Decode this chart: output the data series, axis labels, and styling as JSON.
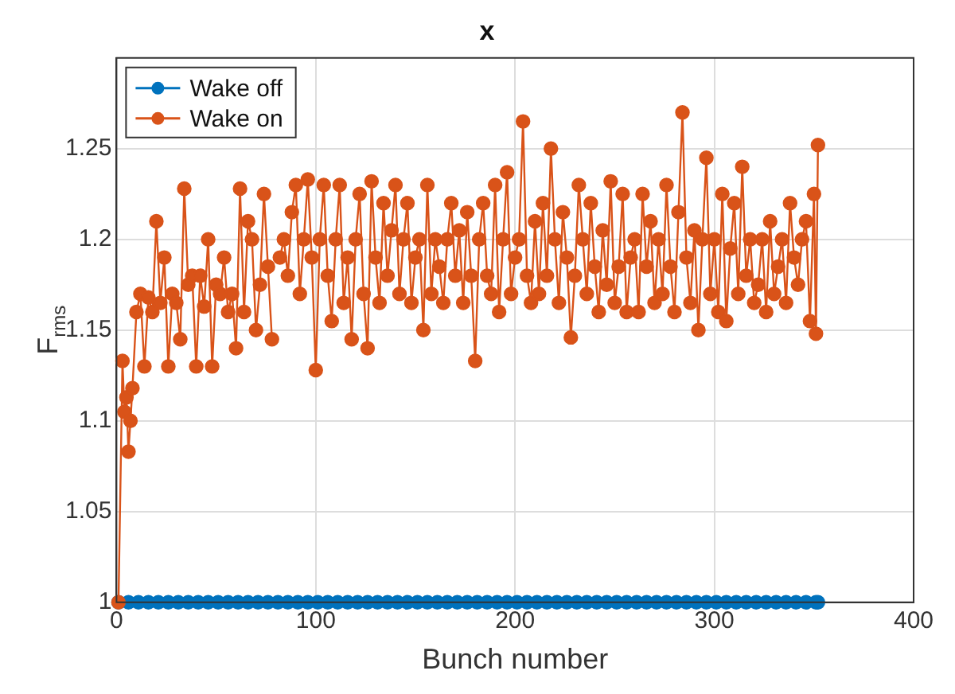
{
  "chart_data": {
    "type": "line",
    "title": "x",
    "xlabel": "Bunch number",
    "ylabel": "F$_{rms}$",
    "xlim": [
      0,
      400
    ],
    "xticks": [
      0,
      100,
      200,
      300,
      400
    ],
    "ylim": [
      1,
      1.3
    ],
    "yticks": [
      1,
      1.05,
      1.1,
      1.15,
      1.2,
      1.25
    ],
    "grid": true,
    "legend": "top left",
    "marker": "circle",
    "line_style": "solid",
    "series": [
      {
        "name": "Wake off",
        "type": "scatter",
        "color": "#0072bd",
        "x": [
          1,
          6,
          11,
          16,
          21,
          26,
          31,
          36,
          41,
          46,
          51,
          56,
          61,
          66,
          71,
          76,
          81,
          86,
          91,
          96,
          101,
          106,
          111,
          116,
          121,
          126,
          131,
          136,
          141,
          146,
          151,
          156,
          161,
          166,
          171,
          176,
          181,
          186,
          191,
          196,
          201,
          206,
          211,
          216,
          221,
          226,
          231,
          236,
          241,
          246,
          251,
          256,
          261,
          266,
          271,
          276,
          281,
          286,
          291,
          296,
          301,
          306,
          311,
          316,
          321,
          326,
          331,
          336,
          341,
          346,
          351,
          352
        ],
        "values": [
          1,
          1,
          1,
          1,
          1,
          1,
          1,
          1,
          1,
          1,
          1,
          1,
          1,
          1,
          1,
          1,
          1,
          1,
          1,
          1,
          1,
          1,
          1,
          1,
          1,
          1,
          1,
          1,
          1,
          1,
          1,
          1,
          1,
          1,
          1,
          1,
          1,
          1,
          1,
          1,
          1,
          1,
          1,
          1,
          1,
          1,
          1,
          1,
          1,
          1,
          1,
          1,
          1,
          1,
          1,
          1,
          1,
          1,
          1,
          1,
          1,
          1,
          1,
          1,
          1,
          1,
          1,
          1,
          1,
          1,
          1,
          1
        ]
      },
      {
        "name": "Wake on",
        "color": "#d95319",
        "x": [
          1,
          3,
          4,
          5,
          6,
          7,
          8,
          10,
          12,
          14,
          16,
          18,
          20,
          22,
          24,
          26,
          28,
          30,
          32,
          34,
          36,
          38,
          40,
          42,
          44,
          46,
          48,
          50,
          52,
          54,
          56,
          58,
          60,
          62,
          64,
          66,
          68,
          70,
          72,
          74,
          76,
          78,
          80,
          82,
          84,
          86,
          88,
          90,
          92,
          94,
          96,
          98,
          100,
          102,
          104,
          106,
          108,
          110,
          112,
          114,
          116,
          118,
          120,
          122,
          124,
          126,
          128,
          130,
          132,
          134,
          136,
          138,
          140,
          142,
          144,
          146,
          148,
          150,
          152,
          154,
          156,
          158,
          160,
          162,
          164,
          166,
          168,
          170,
          172,
          174,
          176,
          178,
          180,
          182,
          184,
          186,
          188,
          190,
          192,
          194,
          196,
          198,
          200,
          202,
          204,
          206,
          208,
          210,
          212,
          214,
          216,
          218,
          220,
          222,
          224,
          226,
          228,
          230,
          232,
          234,
          236,
          238,
          240,
          242,
          244,
          246,
          248,
          250,
          252,
          254,
          256,
          258,
          260,
          262,
          264,
          266,
          268,
          270,
          272,
          274,
          276,
          278,
          280,
          282,
          284,
          286,
          288,
          290,
          292,
          294,
          296,
          298,
          300,
          302,
          304,
          306,
          308,
          310,
          312,
          314,
          316,
          318,
          320,
          322,
          324,
          326,
          328,
          330,
          332,
          334,
          336,
          338,
          340,
          342,
          344,
          346,
          348,
          350,
          351,
          352
        ],
        "values": [
          1.0,
          1.133,
          1.105,
          1.113,
          1.083,
          1.1,
          1.118,
          1.16,
          1.17,
          1.13,
          1.168,
          1.16,
          1.21,
          1.165,
          1.19,
          1.13,
          1.17,
          1.165,
          1.145,
          1.228,
          1.175,
          1.18,
          1.13,
          1.18,
          1.163,
          1.2,
          1.13,
          1.175,
          1.17,
          1.19,
          1.16,
          1.17,
          1.14,
          1.228,
          1.16,
          1.21,
          1.2,
          1.15,
          1.175,
          1.225,
          1.185,
          1.145,
          null,
          1.19,
          1.2,
          1.18,
          1.215,
          1.23,
          1.17,
          1.2,
          1.233,
          1.19,
          1.128,
          1.2,
          1.23,
          1.18,
          1.155,
          1.2,
          1.23,
          1.165,
          1.19,
          1.145,
          1.2,
          1.225,
          1.17,
          1.14,
          1.232,
          1.19,
          1.165,
          1.22,
          1.18,
          1.205,
          1.23,
          1.17,
          1.2,
          1.22,
          1.165,
          1.19,
          1.2,
          1.15,
          1.23,
          1.17,
          1.2,
          1.185,
          1.165,
          1.2,
          1.22,
          1.18,
          1.205,
          1.165,
          1.215,
          1.18,
          1.133,
          1.2,
          1.22,
          1.18,
          1.17,
          1.23,
          1.16,
          1.2,
          1.237,
          1.17,
          1.19,
          1.2,
          1.265,
          1.18,
          1.165,
          1.21,
          1.17,
          1.22,
          1.18,
          1.25,
          1.2,
          1.165,
          1.215,
          1.19,
          1.146,
          1.18,
          1.23,
          1.2,
          1.17,
          1.22,
          1.185,
          1.16,
          1.205,
          1.175,
          1.232,
          1.165,
          1.185,
          1.225,
          1.16,
          1.19,
          1.2,
          1.16,
          1.225,
          1.185,
          1.21,
          1.165,
          1.2,
          1.17,
          1.23,
          1.185,
          1.16,
          1.215,
          1.27,
          1.19,
          1.165,
          1.205,
          1.15,
          1.2,
          1.245,
          1.17,
          1.2,
          1.16,
          1.225,
          1.155,
          1.195,
          1.22,
          1.17,
          1.24,
          1.18,
          1.2,
          1.165,
          1.175,
          1.2,
          1.16,
          1.21,
          1.17,
          1.185,
          1.2,
          1.165,
          1.22,
          1.19,
          1.175,
          1.2,
          1.21,
          1.155,
          1.225,
          1.148,
          1.252
        ]
      }
    ]
  }
}
